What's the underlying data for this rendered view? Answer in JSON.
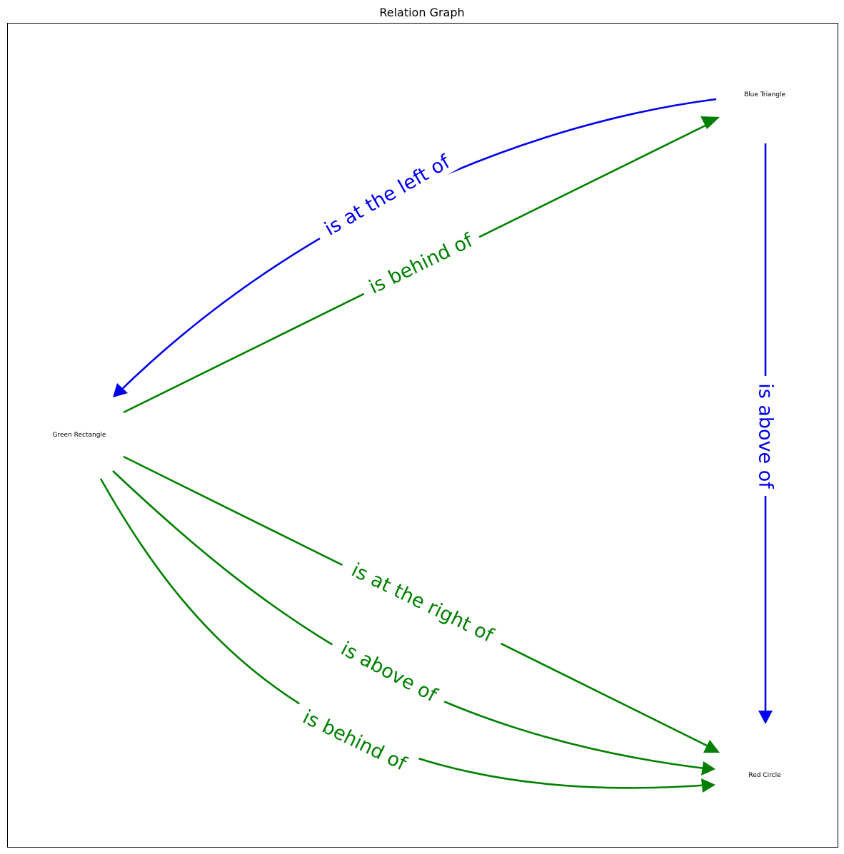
{
  "title": "Relation Graph",
  "colors": {
    "blue": "#0000ee",
    "green": "#008000",
    "frame": "#000000"
  },
  "nodes": {
    "blue_triangle": "Blue Triangle",
    "green_rectangle": "Green Rectangle",
    "red_circle": "Red Circle"
  },
  "edges": [
    {
      "source": "Blue Triangle",
      "target": "Green Rectangle",
      "label": "is at the left of",
      "color": "blue"
    },
    {
      "source": "Green Rectangle",
      "target": "Blue Triangle",
      "label": "is behind of",
      "color": "green"
    },
    {
      "source": "Blue Triangle",
      "target": "Red Circle",
      "label": "is above of",
      "color": "blue"
    },
    {
      "source": "Green Rectangle",
      "target": "Red Circle",
      "label": "is at the right of",
      "color": "green"
    },
    {
      "source": "Green Rectangle",
      "target": "Red Circle",
      "label": "is above of",
      "color": "green"
    },
    {
      "source": "Green Rectangle",
      "target": "Red Circle",
      "label": "is behind of",
      "color": "green"
    }
  ]
}
